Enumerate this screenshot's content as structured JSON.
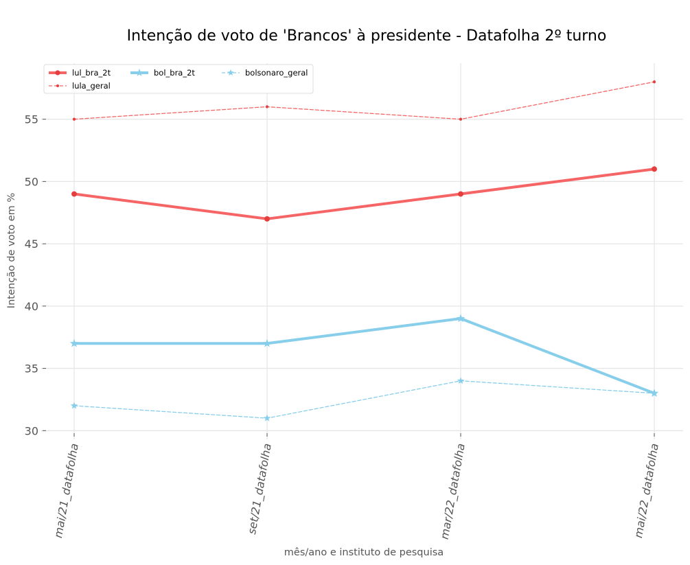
{
  "chart_data": {
    "type": "line",
    "title": "Intenção de voto de 'Brancos' à presidente - Datafolha 2º turno",
    "xlabel": "mês/ano e instituto de pesquisa",
    "ylabel": "Intenção de voto em %",
    "categories": [
      "mai/21_datafolha",
      "set/21_datafolha",
      "mar/22_datafolha",
      "mai/22_datafolha"
    ],
    "ylim": [
      29.3,
      59.5
    ],
    "yticks": [
      30,
      35,
      40,
      45,
      50,
      55
    ],
    "grid": true,
    "legend_position": "top-left",
    "series": [
      {
        "name": "lul_bra_2t",
        "values": [
          49,
          47,
          49,
          51
        ],
        "color": "#f56565",
        "marker_color": "#e53e3e",
        "style": "solid",
        "marker": "circle",
        "weight": "thick"
      },
      {
        "name": "lula_geral",
        "values": [
          55,
          56,
          55,
          58
        ],
        "color": "#f56565",
        "marker_color": "#e53e3e",
        "style": "dashed",
        "marker": "circle",
        "weight": "thin"
      },
      {
        "name": "bol_bra_2t",
        "values": [
          37,
          37,
          39,
          33
        ],
        "color": "#87ceeb",
        "marker_color": "#87ceeb",
        "style": "solid",
        "marker": "star",
        "weight": "thick"
      },
      {
        "name": "bolsonaro_geral",
        "values": [
          32,
          31,
          34,
          33
        ],
        "color": "#87ceeb",
        "marker_color": "#87ceeb",
        "style": "dashed",
        "marker": "star",
        "weight": "thin"
      }
    ]
  }
}
